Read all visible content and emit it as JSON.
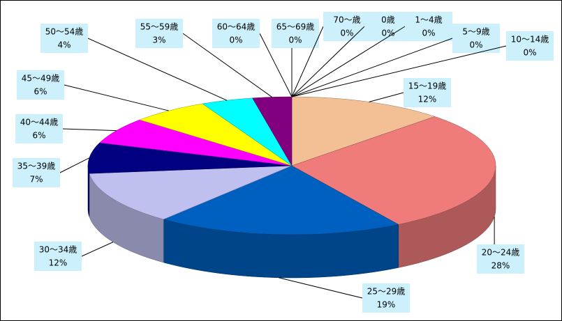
{
  "chart_data": {
    "type": "pie",
    "categories": [
      "15～19歳",
      "20～24歳",
      "25～29歳",
      "30～34歳",
      "35～39歳",
      "40～44歳",
      "45～49歳",
      "50～54歳",
      "55～59歳",
      "60～64歳",
      "65～69歳",
      "70～歳",
      "0歳",
      "1～4歳",
      "5～9歳",
      "10～14歳"
    ],
    "values": [
      12,
      28,
      19,
      12,
      7,
      6,
      6,
      4,
      3,
      0,
      0,
      0,
      0,
      0,
      0,
      0
    ],
    "value_labels": [
      "12%",
      "28%",
      "19%",
      "12%",
      "7%",
      "6%",
      "6%",
      "4%",
      "3%",
      "0%",
      "0%",
      "0%",
      "0%",
      "0%",
      "0%",
      "0%"
    ],
    "colors": [
      "#f2c094",
      "#f07b7b",
      "#0060c0",
      "#c0c0f0",
      "#000080",
      "#ff00ff",
      "#ffff00",
      "#00ffff",
      "#800080",
      "#008080",
      "#808000",
      "#c0c0c0",
      "#ff8000",
      "#008000",
      "#800000",
      "#404040"
    ]
  }
}
